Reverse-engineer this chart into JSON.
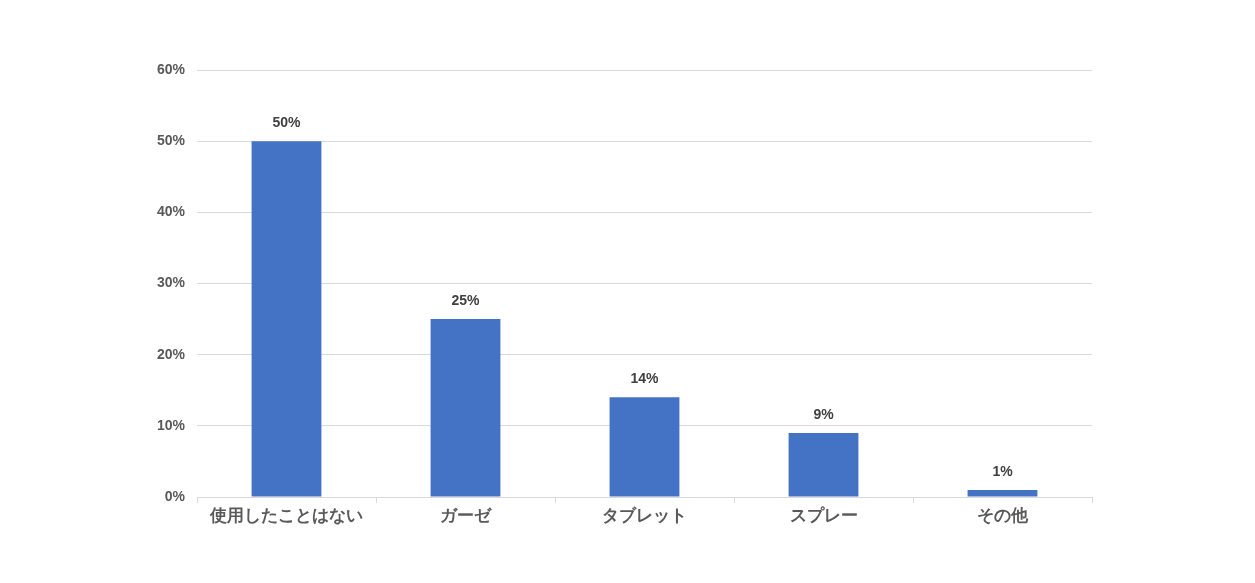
{
  "chart_data": {
    "type": "bar",
    "categories": [
      "使用したことはない",
      "ガーゼ",
      "タブレット",
      "スプレー",
      "その他"
    ],
    "values": [
      50,
      25,
      14,
      9,
      1
    ],
    "value_labels": [
      "50%",
      "25%",
      "14%",
      "9%",
      "1%"
    ],
    "color": "#4472c4",
    "ylim": [
      0,
      60
    ],
    "yticks": [
      {
        "value": 0,
        "label": "0%"
      },
      {
        "value": 10,
        "label": "10%"
      },
      {
        "value": 20,
        "label": "20%"
      },
      {
        "value": 30,
        "label": "30%"
      },
      {
        "value": 40,
        "label": "40%"
      },
      {
        "value": 50,
        "label": "50%"
      },
      {
        "value": 60,
        "label": "60%"
      }
    ],
    "grid": "y",
    "legend": false
  }
}
